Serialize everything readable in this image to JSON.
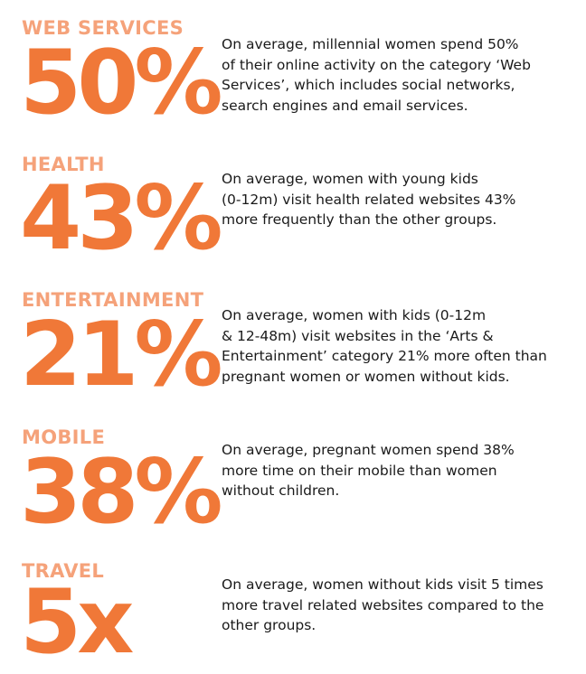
{
  "stats": [
    {
      "category": "WEB SERVICES",
      "value": "50%",
      "lines": [
        "On average, millennial women spend 50%",
        "of their online activity on the category ‘Web",
        "Services’, which includes social networks,",
        "search engines and email services."
      ]
    },
    {
      "category": "HEALTH",
      "value": "43%",
      "lines": [
        "On average, women with young kids",
        "(0-12m) visit health related websites 43%",
        "more frequently than the other groups."
      ]
    },
    {
      "category": "ENTERTAINMENT",
      "value": "21%",
      "lines": [
        "On average, women with kids (0-12m",
        "& 12-48m) visit websites in the ‘Arts &",
        "Entertainment’ category 21% more often than",
        "pregnant women or women without kids."
      ]
    },
    {
      "category": "MOBILE",
      "value": "38%",
      "lines": [
        "On average, pregnant women spend 38%",
        "more time on their mobile than women",
        "without children."
      ]
    },
    {
      "category": "TRAVEL",
      "value": "5x",
      "lines": [
        "On average, women without kids visit 5 times",
        "more travel related websites compared to the",
        "other groups."
      ]
    }
  ],
  "colors": {
    "category_label": "#f5a27a",
    "big_number": "#f07838",
    "body_text": "#1a1a1a",
    "background": "#ffffff"
  }
}
